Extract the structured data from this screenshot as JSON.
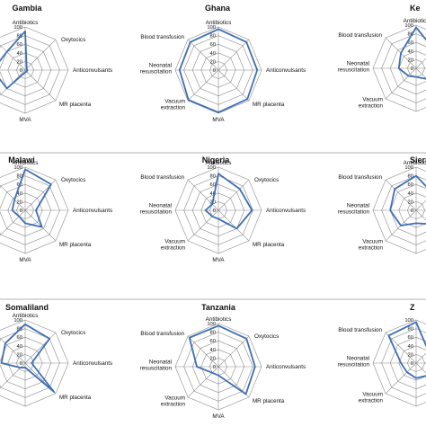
{
  "colors": {
    "series": "#3d6fb5",
    "grid": "#8a8a8a",
    "separator": "#9a9a9a"
  },
  "chart_data": [
    {
      "type": "radar",
      "title": "Gambia",
      "axes": [
        "Antibiotics",
        "Oxytocics",
        "Anticonvulsants",
        "MR placenta",
        "MVA",
        "Vacuum extraction",
        "Neonatal resuscitation",
        "Blood transfusion"
      ],
      "axis_labels": [
        "Antibiotics",
        "Oxytocics",
        "Anticonvulsants",
        "MR placenta",
        "MVA",
        "",
        "",
        ""
      ],
      "ticks": [
        "0",
        "20",
        "40",
        "60",
        "80",
        "100"
      ],
      "rlim": [
        0,
        100
      ],
      "values": [
        90,
        5,
        5,
        5,
        5,
        60,
        75,
        60
      ]
    },
    {
      "type": "radar",
      "title": "Ghana",
      "axes": [
        "Antibiotics",
        "Oxytocics",
        "Anticonvulsants",
        "MR placenta",
        "MVA",
        "Vacuum extraction",
        "Neonatal resuscitation",
        "Blood transfusion"
      ],
      "axis_labels": [
        "Antibiotics",
        "",
        "Anticonvulsants",
        "MR placenta",
        "MVA",
        "Vacuum extraction",
        "Neonatal resuscitation",
        "Blood transfusion"
      ],
      "ticks": [
        "0",
        "20",
        "40",
        "60",
        "80",
        "100"
      ],
      "rlim": [
        0,
        100
      ],
      "values": [
        95,
        92,
        90,
        95,
        98,
        98,
        90,
        92
      ]
    },
    {
      "type": "radar",
      "title": "Ke",
      "axes": [
        "Antibiotics",
        "Oxytocics",
        "Anticonvulsants",
        "MR placenta",
        "MVA",
        "Vacuum extraction",
        "Neonatal resuscitation",
        "Blood transfusion"
      ],
      "axis_labels": [
        "Antibiotics",
        "",
        "",
        "",
        "",
        "Vacuum extraction",
        "Neonatal resuscitation",
        "Blood transfusion"
      ],
      "ticks": [
        "0",
        "20",
        "40",
        "60",
        "80",
        "100"
      ],
      "rlim": [
        0,
        100
      ],
      "values": [
        95,
        60,
        25,
        35,
        20,
        25,
        40,
        50
      ]
    },
    {
      "type": "radar",
      "title": "Malawi",
      "axes": [
        "Antibiotics",
        "Oxytocics",
        "Anticonvulsants",
        "MR placenta",
        "MVA",
        "Vacuum extraction",
        "Neonatal resuscitation",
        "Blood transfusion"
      ],
      "axis_labels": [
        "Antibiotics",
        "Oxytocics",
        "Anticonvulsants",
        "MR placenta",
        "MVA",
        "",
        "",
        ""
      ],
      "ticks": [
        "0",
        "20",
        "40",
        "60",
        "80",
        "100"
      ],
      "rlim": [
        0,
        100
      ],
      "values": [
        95,
        85,
        25,
        55,
        30,
        20,
        30,
        35
      ]
    },
    {
      "type": "radar",
      "title": "Nigeria",
      "axes": [
        "Antibiotics",
        "Oxytocics",
        "Anticonvulsants",
        "MR placenta",
        "MVA",
        "Vacuum extraction",
        "Neonatal resuscitation",
        "Blood transfusion"
      ],
      "axis_labels": [
        "Antibiotics",
        "Oxytocics",
        "Anticonvulsants",
        "MR placenta",
        "MVA",
        "Vacuum extraction",
        "Neonatal resuscitation",
        "Blood transfusion"
      ],
      "ticks": [
        "0",
        "20",
        "40",
        "60",
        "80",
        "100"
      ],
      "rlim": [
        0,
        100
      ],
      "values": [
        85,
        70,
        78,
        60,
        20,
        20,
        30,
        20
      ]
    },
    {
      "type": "radar",
      "title": "Sierr",
      "axes": [
        "Antibiotics",
        "Oxytocics",
        "Anticonvulsants",
        "MR placenta",
        "MVA",
        "Vacuum extraction",
        "Neonatal resuscitation",
        "Blood transfusion"
      ],
      "axis_labels": [
        "Antibiotics",
        "",
        "",
        "",
        "",
        "Vacuum extraction",
        "Neonatal resuscitation",
        "Blood transfusion"
      ],
      "ticks": [
        "0",
        "20",
        "40",
        "60",
        "80",
        "100"
      ],
      "rlim": [
        0,
        100
      ],
      "values": [
        80,
        55,
        35,
        45,
        30,
        50,
        60,
        70
      ]
    },
    {
      "type": "radar",
      "title": "Somaliland",
      "axes": [
        "Antibiotics",
        "Oxytocics",
        "Anticonvulsants",
        "MR placenta",
        "MVA",
        "Vacuum extraction",
        "Neonatal resuscitation",
        "Blood transfusion"
      ],
      "axis_labels": [
        "Antibiotics",
        "Oxytocics",
        "Anticonvulsants",
        "MR placenta",
        "",
        "",
        "",
        ""
      ],
      "ticks": [
        "0",
        "20",
        "40",
        "60",
        "80",
        "100"
      ],
      "rlim": [
        0,
        100
      ],
      "values": [
        90,
        80,
        15,
        95,
        10,
        15,
        55,
        65
      ]
    },
    {
      "type": "radar",
      "title": "Tanzania",
      "axes": [
        "Antibiotics",
        "Oxytocics",
        "Anticonvulsants",
        "MR placenta",
        "MVA",
        "Vacuum extraction",
        "Neonatal resuscitation",
        "Blood transfusion"
      ],
      "axis_labels": [
        "Antibiotics",
        "Oxytocics",
        "Anticonvulsants",
        "MR placenta",
        "MVA",
        "Vacuum extraction",
        "Neonatal resuscitation",
        "Blood transfusion"
      ],
      "ticks": [
        "0",
        "20",
        "40",
        "60",
        "80",
        "100"
      ],
      "rlim": [
        0,
        100
      ],
      "values": [
        95,
        92,
        85,
        90,
        20,
        20,
        50,
        95
      ]
    },
    {
      "type": "radar",
      "title": "Z",
      "axes": [
        "Antibiotics",
        "Oxytocics",
        "Anticonvulsants",
        "MR placenta",
        "MVA",
        "Vacuum extraction",
        "Neonatal resuscitation",
        "Blood transfusion"
      ],
      "axis_labels": [
        "",
        "",
        "",
        "",
        "",
        "Vacuum extraction",
        "Neonatal resuscitation",
        "Blood transfusion"
      ],
      "ticks": [
        "0",
        "20",
        "40",
        "60",
        "80",
        "100"
      ],
      "rlim": [
        0,
        100
      ],
      "values": [
        95,
        40,
        40,
        40,
        35,
        30,
        35,
        90
      ]
    }
  ]
}
